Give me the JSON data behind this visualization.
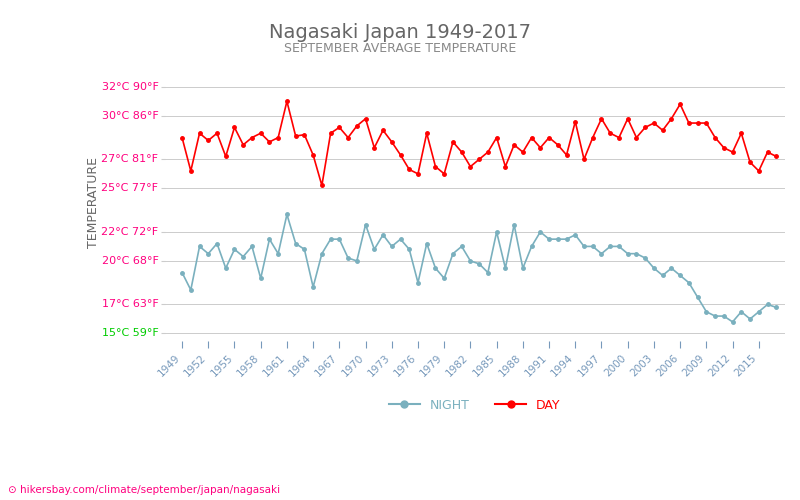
{
  "title": "Nagasaki Japan 1949-2017",
  "subtitle": "SEPTEMBER AVERAGE TEMPERATURE",
  "ylabel": "TEMPERATURE",
  "xlabel_url": "hikersbay.com/climate/september/japan/nagasaki",
  "yticks_celsius": [
    15,
    17,
    20,
    22,
    25,
    27,
    30,
    32
  ],
  "yticks_fahrenheit": [
    59,
    63,
    68,
    72,
    77,
    81,
    86,
    90
  ],
  "ytick_colors": [
    "#00cc00",
    "#ff007f",
    "#ff007f",
    "#ff007f",
    "#ff007f",
    "#ff007f",
    "#ff007f",
    "#ff007f"
  ],
  "years": [
    1949,
    1950,
    1951,
    1952,
    1953,
    1954,
    1955,
    1956,
    1957,
    1958,
    1959,
    1960,
    1961,
    1962,
    1963,
    1964,
    1965,
    1966,
    1967,
    1968,
    1969,
    1970,
    1971,
    1972,
    1973,
    1974,
    1975,
    1976,
    1977,
    1978,
    1979,
    1980,
    1981,
    1982,
    1983,
    1984,
    1985,
    1986,
    1987,
    1988,
    1989,
    1990,
    1991,
    1992,
    1993,
    1994,
    1995,
    1996,
    1997,
    1998,
    1999,
    2000,
    2001,
    2002,
    2003,
    2004,
    2005,
    2006,
    2007,
    2008,
    2009,
    2010,
    2011,
    2012,
    2013,
    2014,
    2015,
    2016,
    2017
  ],
  "day_temps": [
    28.5,
    26.2,
    28.8,
    28.3,
    28.8,
    27.2,
    29.2,
    28.0,
    28.5,
    28.8,
    28.2,
    28.5,
    31.0,
    28.6,
    28.7,
    27.3,
    25.2,
    28.8,
    29.2,
    28.5,
    29.3,
    29.8,
    27.8,
    29.0,
    28.2,
    27.3,
    26.3,
    26.0,
    28.8,
    26.5,
    26.0,
    28.2,
    27.5,
    26.5,
    27.0,
    27.5,
    28.5,
    26.5,
    28.0,
    27.5,
    28.5,
    27.8,
    28.5,
    28.0,
    27.3,
    29.6,
    27.0,
    28.5,
    29.8,
    28.8,
    28.5,
    29.8,
    28.5,
    29.2,
    29.5,
    29.0,
    29.8,
    30.8,
    29.5,
    29.5,
    29.5,
    28.5,
    27.8,
    27.5,
    28.8,
    26.8,
    26.2,
    27.5,
    27.2
  ],
  "night_temps": [
    19.2,
    18.0,
    21.0,
    20.5,
    21.2,
    19.5,
    20.8,
    20.3,
    21.0,
    18.8,
    21.5,
    20.5,
    23.2,
    21.2,
    20.8,
    18.2,
    20.5,
    21.5,
    21.5,
    20.2,
    20.0,
    22.5,
    20.8,
    21.8,
    21.0,
    21.5,
    20.8,
    18.5,
    21.2,
    19.5,
    18.8,
    20.5,
    21.0,
    20.0,
    19.8,
    19.2,
    22.0,
    19.5,
    22.5,
    19.5,
    21.0,
    22.0,
    21.5,
    21.5,
    21.5,
    21.8,
    21.0,
    21.0,
    20.5,
    21.0,
    21.0,
    20.5,
    20.5,
    20.2,
    19.5,
    19.0,
    19.5,
    19.0,
    18.5,
    17.5,
    16.5,
    16.2,
    16.2,
    15.8,
    16.5,
    16.0,
    16.5,
    17.0,
    16.8
  ],
  "day_color": "#ff0000",
  "night_color": "#7ab0be",
  "title_color": "#666666",
  "subtitle_color": "#888888",
  "ylabel_color": "#666666",
  "tick_label_color": "#ff007f",
  "xtick_color": "#7799bb",
  "background_color": "#ffffff",
  "grid_color": "#cccccc",
  "legend_night_color": "#7ab0be",
  "legend_day_color": "#ff0000",
  "url_color": "#ff007f",
  "bottom_url": "hikersbay.com/climate/september/japan/nagasaki"
}
